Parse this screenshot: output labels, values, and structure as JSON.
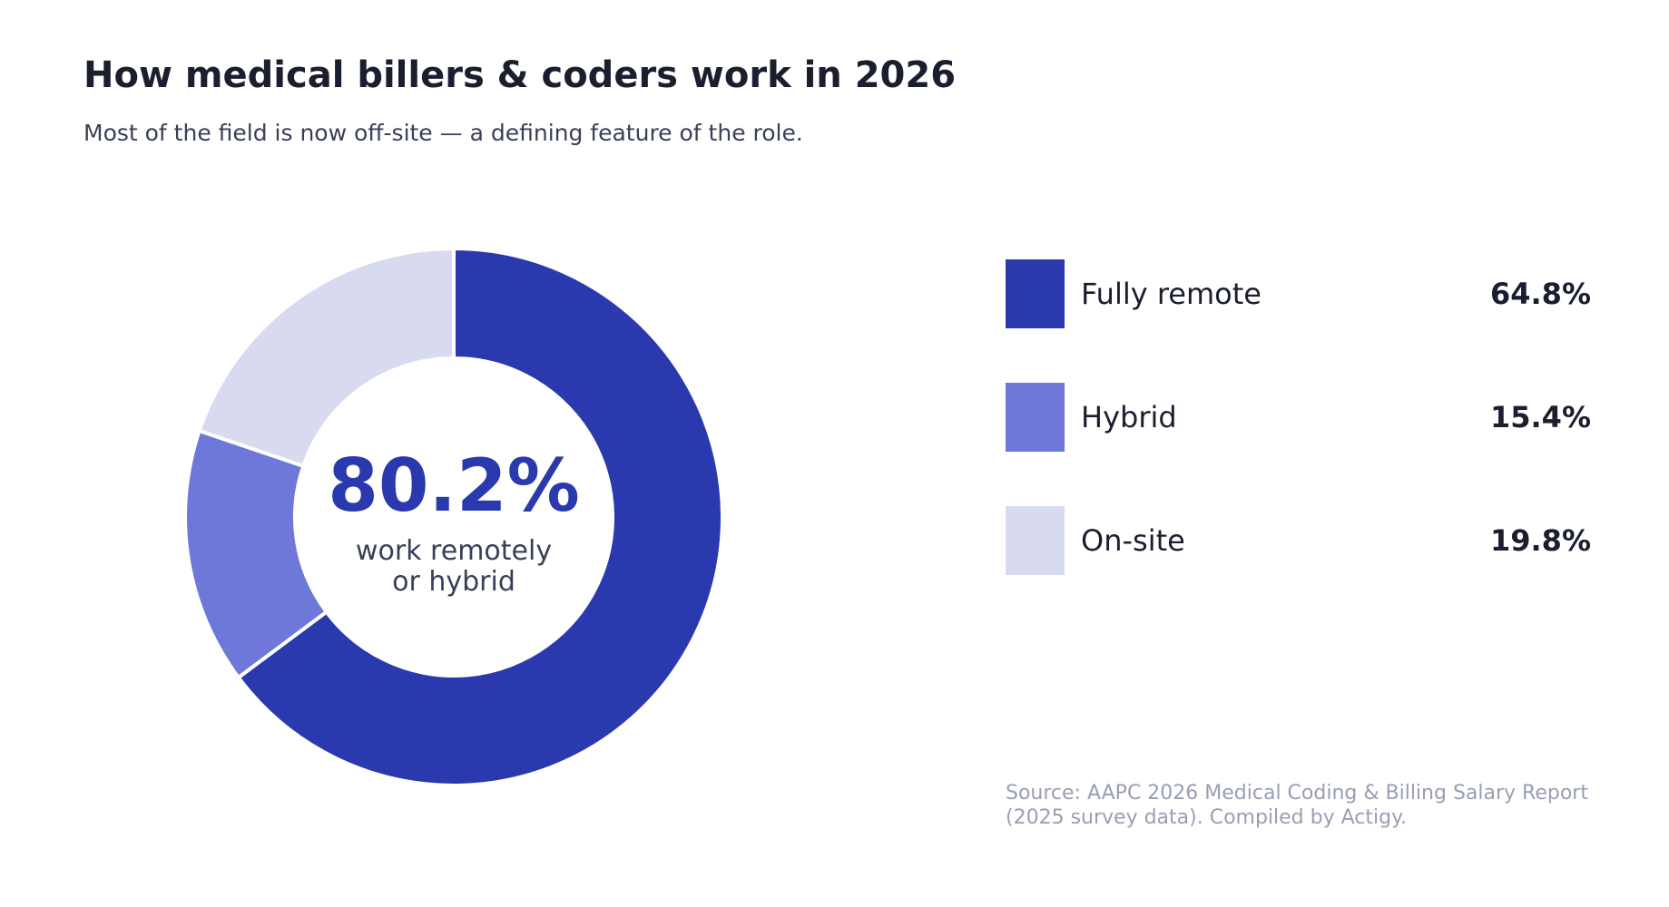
{
  "chart_data": {
    "type": "pie",
    "title": "How medical billers & coders work in 2026",
    "subtitle": "Most of the field is now off-site — a defining feature of the role.",
    "categories": [
      "Fully remote",
      "Hybrid",
      "On-site"
    ],
    "values": [
      64.8,
      15.4,
      19.8
    ],
    "value_labels": [
      "64.8%",
      "15.4%",
      "19.8%"
    ],
    "colors": [
      "#2a3aae",
      "#6e78d8",
      "#d8dbef"
    ],
    "center_value": "80.2%",
    "center_label_lines": [
      "work remotely",
      "or hybrid"
    ],
    "legend_position": "right",
    "source_lines": [
      "Source: AAPC 2026 Medical Coding & Billing Salary Report",
      "(2025 survey data). Compiled by Actigy."
    ]
  }
}
